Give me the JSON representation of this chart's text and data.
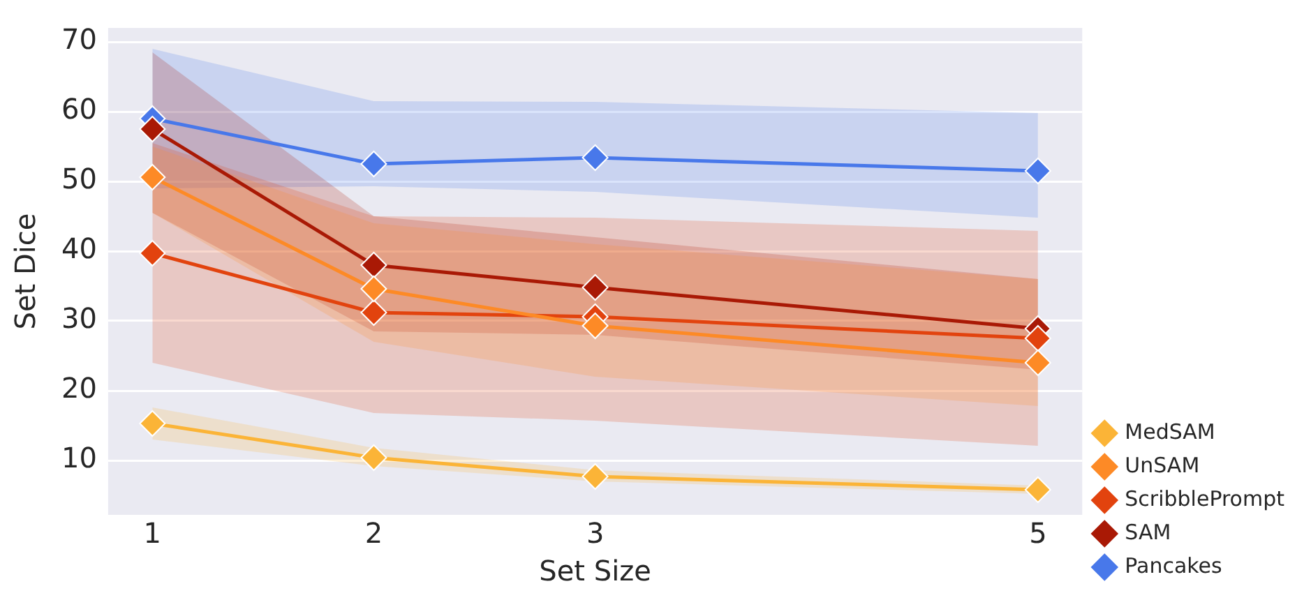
{
  "chart_data": {
    "type": "line",
    "xlabel": "Set Size",
    "ylabel": "Set Dice",
    "x": [
      1,
      2,
      3,
      5
    ],
    "xlim": [
      0.8,
      5.2
    ],
    "xticks": [
      1,
      2,
      3,
      5
    ],
    "ylim": [
      2.2,
      72
    ],
    "yticks": [
      10,
      20,
      30,
      40,
      50,
      60,
      70
    ],
    "grid": "y",
    "legend": "bottom right",
    "marker": "diamond",
    "line_style": "solid",
    "series": [
      {
        "name": "MedSAM",
        "color": "#fbb437",
        "values": [
          15.3,
          10.4,
          7.7,
          5.8
        ],
        "lower": [
          13,
          9.2,
          7,
          5.2
        ],
        "upper": [
          17.6,
          11.8,
          8.6,
          6.4
        ]
      },
      {
        "name": "UnSAM",
        "color": "#fd8a26",
        "values": [
          50.6,
          34.6,
          29.3,
          24
        ],
        "lower": [
          45.5,
          27,
          22,
          17.8
        ],
        "upper": [
          55,
          44,
          41,
          36
        ]
      },
      {
        "name": "ScribblePrompt",
        "color": "#e2430e",
        "values": [
          39.7,
          31.2,
          30.6,
          27.5
        ],
        "lower": [
          24,
          16.8,
          15.7,
          12.1
        ],
        "upper": [
          55.5,
          45,
          44.8,
          42.9
        ]
      },
      {
        "name": "SAM",
        "color": "#a91905",
        "values": [
          57.5,
          38,
          34.8,
          28.9
        ],
        "lower": [
          45.5,
          28.5,
          28,
          23
        ],
        "upper": [
          68.5,
          45,
          42,
          36
        ]
      },
      {
        "name": "Pancakes",
        "color": "#4878ea",
        "values": [
          59,
          52.5,
          53.4,
          51.5
        ],
        "lower": [
          49,
          49.3,
          48.5,
          44.8
        ],
        "upper": [
          69,
          61.5,
          61.4,
          59.8
        ]
      }
    ]
  }
}
